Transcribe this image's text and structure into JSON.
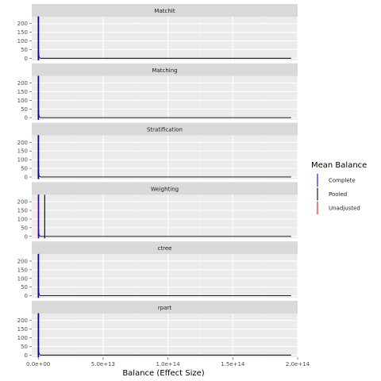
{
  "chart_data": {
    "type": "line",
    "xlabel": "Balance (Effect Size)",
    "ylabel": "",
    "x_ticks": [
      "0.0e+00",
      "5.0e+13",
      "1.0e+14",
      "1.5e+14",
      "2.0e+14"
    ],
    "x_tick_values": [
      0,
      50000000000000,
      100000000000000,
      150000000000000,
      200000000000000
    ],
    "xlim": [
      -5000000000000,
      200000000000000
    ],
    "y_ticks": [
      "0",
      "50",
      "100",
      "150",
      "200"
    ],
    "y_tick_values": [
      0,
      50,
      100,
      150,
      200
    ],
    "ylim": [
      -12,
      240
    ],
    "grid": true,
    "legend": {
      "title": "Mean Balance",
      "position": "right",
      "entries": [
        {
          "label": "Complete",
          "color": "#0000ff"
        },
        {
          "label": "Pooled",
          "color": "#000000"
        },
        {
          "label": "Unadjusted",
          "color": "#ff0000"
        }
      ]
    },
    "panels": [
      {
        "title": "MatchIt",
        "density_x": [
          0,
          20000000000,
          40000000000,
          60000000000,
          80000000000,
          100000000000,
          200000000000,
          400000000000,
          700000000000,
          1000000000000,
          1300000000000,
          1500000000000,
          1800000000000,
          3000000000000,
          10000000000000,
          50000000000000,
          100000000000000,
          150000000000000,
          195000000000000
        ],
        "density_y": [
          0,
          240,
          240,
          240,
          240,
          240,
          60,
          20,
          8,
          4,
          2,
          1,
          0,
          0,
          0,
          0,
          0,
          0,
          0
        ],
        "vlines": [
          {
            "series": "Complete",
            "x": 0
          },
          {
            "series": "Pooled",
            "x": 0
          },
          {
            "series": "Unadjusted",
            "x": 0
          }
        ]
      },
      {
        "title": "Matching",
        "density_x": [
          0,
          20000000000,
          40000000000,
          60000000000,
          80000000000,
          100000000000,
          200000000000,
          400000000000,
          700000000000,
          1000000000000,
          1300000000000,
          1500000000000,
          1800000000000,
          3000000000000,
          10000000000000,
          50000000000000,
          100000000000000,
          150000000000000,
          195000000000000
        ],
        "density_y": [
          0,
          240,
          240,
          240,
          240,
          240,
          60,
          20,
          8,
          4,
          2,
          1,
          0,
          0,
          0,
          0,
          0,
          0,
          0
        ],
        "vlines": [
          {
            "series": "Complete",
            "x": 0
          },
          {
            "series": "Pooled",
            "x": 0
          },
          {
            "series": "Unadjusted",
            "x": 0
          }
        ]
      },
      {
        "title": "Stratification",
        "density_x": [
          0,
          20000000000,
          40000000000,
          60000000000,
          80000000000,
          100000000000,
          200000000000,
          400000000000,
          700000000000,
          1000000000000,
          1300000000000,
          1500000000000,
          1800000000000,
          3000000000000,
          10000000000000,
          50000000000000,
          100000000000000,
          150000000000000,
          195000000000000
        ],
        "density_y": [
          0,
          240,
          240,
          240,
          240,
          240,
          60,
          20,
          8,
          4,
          2,
          1,
          0,
          0,
          0,
          0,
          0,
          0,
          0
        ],
        "vlines": [
          {
            "series": "Complete",
            "x": 0
          },
          {
            "series": "Pooled",
            "x": 0
          },
          {
            "series": "Unadjusted",
            "x": 0
          }
        ]
      },
      {
        "title": "Weighting",
        "density_x": [
          0,
          20000000000,
          40000000000,
          60000000000,
          80000000000,
          100000000000,
          200000000000,
          400000000000,
          700000000000,
          1000000000000,
          1300000000000,
          1500000000000,
          1800000000000,
          3000000000000,
          10000000000000,
          50000000000000,
          100000000000000,
          150000000000000,
          195000000000000
        ],
        "density_y": [
          0,
          240,
          240,
          240,
          240,
          240,
          60,
          20,
          8,
          4,
          2,
          1,
          0,
          0,
          0,
          0,
          0,
          0,
          0
        ],
        "vlines": [
          {
            "series": "Complete",
            "x": 0
          },
          {
            "series": "Pooled",
            "x": 5000000000000
          },
          {
            "series": "Unadjusted",
            "x": 0
          }
        ]
      },
      {
        "title": "ctree",
        "density_x": [
          0,
          20000000000,
          40000000000,
          60000000000,
          80000000000,
          100000000000,
          200000000000,
          400000000000,
          700000000000,
          1000000000000,
          1300000000000,
          1500000000000,
          1800000000000,
          3000000000000,
          10000000000000,
          50000000000000,
          100000000000000,
          150000000000000,
          195000000000000
        ],
        "density_y": [
          0,
          240,
          240,
          240,
          240,
          240,
          60,
          20,
          8,
          4,
          2,
          1,
          0,
          0,
          0,
          0,
          0,
          0,
          0
        ],
        "vlines": [
          {
            "series": "Complete",
            "x": 0
          },
          {
            "series": "Pooled",
            "x": 0
          },
          {
            "series": "Unadjusted",
            "x": 0
          }
        ]
      },
      {
        "title": "rpart",
        "density_x": [
          0,
          20000000000,
          40000000000,
          60000000000,
          80000000000,
          100000000000,
          200000000000,
          400000000000,
          700000000000,
          1000000000000,
          1300000000000,
          1500000000000,
          1800000000000,
          3000000000000,
          10000000000000,
          50000000000000,
          100000000000000,
          150000000000000,
          195000000000000
        ],
        "density_y": [
          0,
          240,
          240,
          240,
          240,
          240,
          60,
          20,
          8,
          4,
          2,
          1,
          0,
          0,
          0,
          0,
          0,
          0,
          0
        ],
        "vlines": [
          {
            "series": "Complete",
            "x": 0
          },
          {
            "series": "Pooled",
            "x": 0
          },
          {
            "series": "Unadjusted",
            "x": 0
          }
        ]
      }
    ],
    "colors": {
      "panel_background": "#ebebeb",
      "strip_background": "#d9d9d9",
      "grid_major": "#ffffff",
      "grid_minor": "#f2f2f2",
      "density_line": "#000000"
    }
  }
}
